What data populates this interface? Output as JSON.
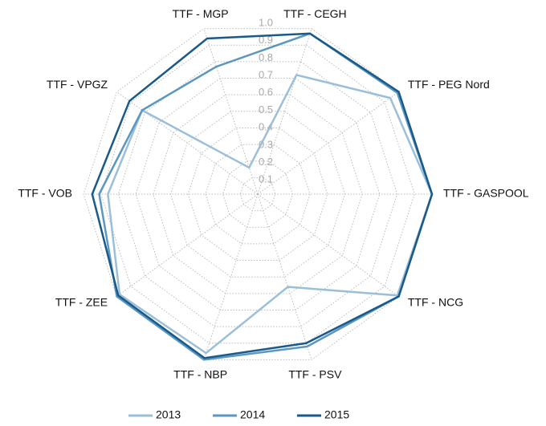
{
  "chart_data": {
    "type": "radar",
    "categories": [
      "TTF - CEGH",
      "TTF - PEG Nord",
      "TTF - GASPOOL",
      "TTF - NCG",
      "TTF - PSV",
      "TTF - NBP",
      "TTF - ZEE",
      "TTF - VOB",
      "TTF - VPGZ",
      "TTF - MGP"
    ],
    "series": [
      {
        "name": "2013",
        "color": "#9bbfd9",
        "values": [
          0.72,
          0.94,
          1.0,
          0.99,
          0.56,
          0.96,
          0.98,
          0.86,
          0.82,
          0.16
        ]
      },
      {
        "name": "2014",
        "color": "#5b97c0",
        "values": [
          0.97,
          0.99,
          1.0,
          1.0,
          0.92,
          1.0,
          1.0,
          0.91,
          0.82,
          0.77
        ]
      },
      {
        "name": "2015",
        "color": "#1a5a8a",
        "values": [
          0.97,
          1.0,
          1.0,
          1.0,
          0.9,
          0.99,
          0.99,
          0.95,
          0.91,
          0.94
        ]
      }
    ],
    "ylim": [
      0,
      1
    ],
    "yticks": [
      0.1,
      0.2,
      0.3,
      0.4,
      0.5,
      0.6,
      0.7,
      0.8,
      0.9,
      {
        "value": 1,
        "label": "1.0"
      }
    ],
    "grid": true,
    "legend": "bottom"
  }
}
